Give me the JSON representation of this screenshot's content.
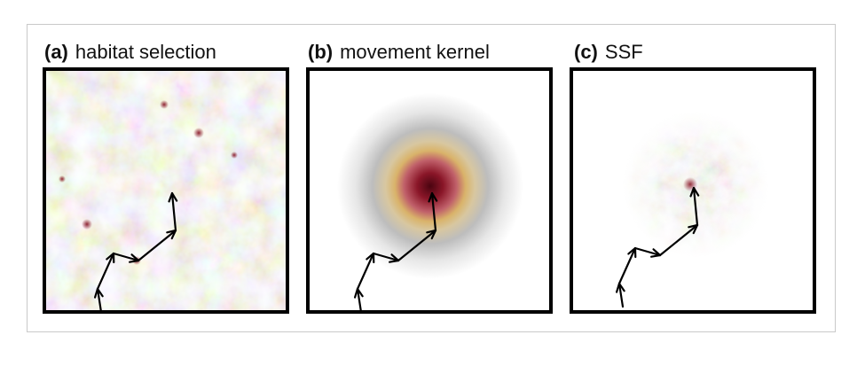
{
  "panels": [
    {
      "tag": "(a)",
      "title": "habitat selection"
    },
    {
      "tag": "(b)",
      "title": "movement kernel"
    },
    {
      "tag": "(c)",
      "title": "SSF"
    }
  ],
  "colors": {
    "habitat_low": "#ffffff",
    "habitat_mid": "#c8c8c8",
    "habitat_high": "#b8a070",
    "hotspot": "#8a1a2a",
    "kernel_outer": "#e8d08a",
    "kernel_inner": "#6a0e1e",
    "path": "#000000",
    "border": "#000000"
  },
  "path_icon": "arrow-path"
}
